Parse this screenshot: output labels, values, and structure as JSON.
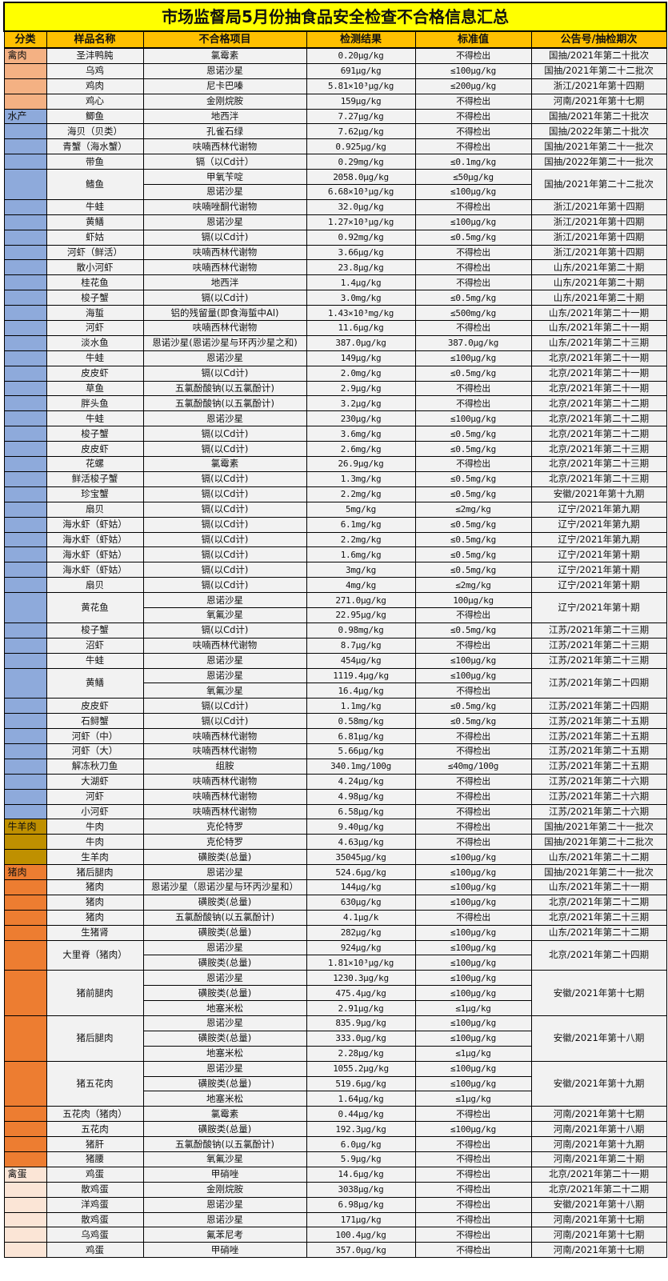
{
  "title": "市场监督局5月份抽食品安全检查不合格信息汇总",
  "headers": [
    "分类",
    "样品名称",
    "不合格项目",
    "检测结果",
    "标准值",
    "公告号/抽检期次"
  ],
  "colors": {
    "title_bg": "#ffff00",
    "header_bg": "#ffc000",
    "cell_bg": "#f2f2f2"
  },
  "categories": [
    {
      "label": "禽肉",
      "color": "#f4b183",
      "groups": [
        {
          "name": "圣沣鸭肫",
          "notice": "国抽/2021年第二十批次",
          "items": [
            [
              "氯霉素",
              "0.20μg/kg",
              "不得检出"
            ]
          ]
        },
        {
          "name": "乌鸡",
          "notice": "国抽/2021年第二十二批次",
          "items": [
            [
              "恩诺沙星",
              "691μg/kg",
              "≤100μg/kg"
            ]
          ]
        },
        {
          "name": "鸡肉",
          "notice": "浙江/2021年第十四期",
          "items": [
            [
              "尼卡巴嗪",
              "5.81×10³μg/kg",
              "≤200μg/kg"
            ]
          ]
        },
        {
          "name": "鸡心",
          "notice": "河南/2021年第十七期",
          "items": [
            [
              "金刚烷胺",
              "159μg/kg",
              "不得检出"
            ]
          ]
        }
      ]
    },
    {
      "label": "水产",
      "color": "#8eaadb",
      "groups": [
        {
          "name": "鲫鱼",
          "notice": "国抽/2021年第二十批次",
          "items": [
            [
              "地西泮",
              "7.27μg/kg",
              "不得检出"
            ]
          ]
        },
        {
          "name": "海贝（贝类）",
          "notice": "国抽/2022年第二十批次",
          "items": [
            [
              "孔雀石绿",
              "7.62μg/kg",
              "不得检出"
            ]
          ]
        },
        {
          "name": "青蟹（海水蟹）",
          "notice": "国抽/2021年第二十一批次",
          "items": [
            [
              "呋喃西林代谢物",
              "0.925μg/kg",
              "不得检出"
            ]
          ]
        },
        {
          "name": "带鱼",
          "notice": "国抽/2022年第二十一批次",
          "items": [
            [
              "镉（以Cd计）",
              "0.29mg/kg",
              "≤0.1mg/kg"
            ]
          ]
        },
        {
          "name": "鳍鱼",
          "notice": "国抽/2021年第二十二批次",
          "items": [
            [
              "甲氧苄啶",
              "2058.0μg/kg",
              "≤50μg/kg"
            ],
            [
              "恩诺沙星",
              "6.68×10³μg/kg",
              "≤100μg/kg"
            ]
          ]
        },
        {
          "name": "牛蛙",
          "notice": "浙江/2021年第十四期",
          "items": [
            [
              "呋喃唑酮代谢物",
              "32.0μg/kg",
              "不得检出"
            ]
          ]
        },
        {
          "name": "黄鳝",
          "notice": "浙江/2021年第十四期",
          "items": [
            [
              "恩诺沙星",
              "1.27×10³μg/kg",
              "≤100μg/kg"
            ]
          ]
        },
        {
          "name": "虾姑",
          "notice": "浙江/2021年第十四期",
          "items": [
            [
              "镉(以Cd计)",
              "0.92mg/kg",
              "≤0.5mg/kg"
            ]
          ]
        },
        {
          "name": "河虾（鲜活）",
          "notice": "浙江/2021年第十四期",
          "items": [
            [
              "呋喃西林代谢物",
              "3.66μg/kg",
              "不得检出"
            ]
          ]
        },
        {
          "name": "散小河虾",
          "notice": "山东/2021年第二十期",
          "items": [
            [
              "呋喃西林代谢物",
              "23.8μg/kg",
              "不得检出"
            ]
          ]
        },
        {
          "name": "桂花鱼",
          "notice": "山东/2021年第二十期",
          "items": [
            [
              "地西泮",
              "1.4μg/kg",
              "不得检出"
            ]
          ]
        },
        {
          "name": "梭子蟹",
          "notice": "山东/2021年第二十期",
          "items": [
            [
              "镉(以Cd计)",
              "3.0mg/kg",
              "≤0.5mg/kg"
            ]
          ]
        },
        {
          "name": "海蜇",
          "notice": "山东/2021年第二十一期",
          "items": [
            [
              "铝的残留量(即食海蜇中Al)",
              "1.43×10³mg/kg",
              "≤500mg/kg"
            ]
          ]
        },
        {
          "name": "河虾",
          "notice": "山东/2021年第二十一期",
          "items": [
            [
              "呋喃西林代谢物",
              "11.6μg/kg",
              "不得检出"
            ]
          ]
        },
        {
          "name": "淡水鱼",
          "notice": "山东/2021年第二十三期",
          "items": [
            [
              "恩诺沙星(恩诺沙星与环丙沙星之和)",
              "387.0μg/kg",
              "387.0μg/kg"
            ]
          ]
        },
        {
          "name": "牛蛙",
          "notice": "北京/2021年第二十一期",
          "items": [
            [
              "恩诺沙星",
              "149μg/kg",
              "≤100μg/kg"
            ]
          ]
        },
        {
          "name": "皮皮虾",
          "notice": "北京/2021年第二十一期",
          "items": [
            [
              "镉(以Cd计)",
              "2.0mg/kg",
              "≤0.5mg/kg"
            ]
          ]
        },
        {
          "name": "草鱼",
          "notice": "北京/2021年第二十一期",
          "items": [
            [
              "五氯酚酸钠(以五氯酚计)",
              "2.9μg/kg",
              "不得检出"
            ]
          ]
        },
        {
          "name": "胖头鱼",
          "notice": "北京/2021年第二十二期",
          "items": [
            [
              "五氯酚酸钠(以五氯酚计)",
              "3.2μg/kg",
              "不得检出"
            ]
          ]
        },
        {
          "name": "牛蛙",
          "notice": "北京/2021年第二十二期",
          "items": [
            [
              "恩诺沙星",
              "230μg/kg",
              "≤100μg/kg"
            ]
          ]
        },
        {
          "name": "梭子蟹",
          "notice": "北京/2021年第二十二期",
          "items": [
            [
              "镉(以Cd计)",
              "3.6mg/kg",
              "≤0.5mg/kg"
            ]
          ]
        },
        {
          "name": "皮皮虾",
          "notice": "北京/2021年第二十三期",
          "items": [
            [
              "镉(以Cd计)",
              "2.6mg/kg",
              "≤0.5mg/kg"
            ]
          ]
        },
        {
          "name": "花螺",
          "notice": "北京/2021年第二十三期",
          "items": [
            [
              "氯霉素",
              "26.9μg/kg",
              "不得检出"
            ]
          ]
        },
        {
          "name": "鲜活梭子蟹",
          "notice": "北京/2021年第二十三期",
          "items": [
            [
              "镉(以Cd计)",
              "1.3mg/kg",
              "≤0.5mg/kg"
            ]
          ]
        },
        {
          "name": "珍宝蟹",
          "notice": "安徽/2021年第十九期",
          "items": [
            [
              "镉(以Cd计)",
              "2.2mg/kg",
              "≤0.5mg/kg"
            ]
          ]
        },
        {
          "name": "扇贝",
          "notice": "辽宁/2021年第九期",
          "items": [
            [
              "镉(以Cd计)",
              "5mg/kg",
              "≤2mg/kg"
            ]
          ]
        },
        {
          "name": "海水虾（虾姑）",
          "notice": "辽宁/2021年第九期",
          "items": [
            [
              "镉(以Cd计)",
              "6.1mg/kg",
              "≤0.5mg/kg"
            ]
          ]
        },
        {
          "name": "海水虾（虾姑）",
          "notice": "辽宁/2021年第九期",
          "items": [
            [
              "镉(以Cd计)",
              "2.2mg/kg",
              "≤0.5mg/kg"
            ]
          ]
        },
        {
          "name": "海水虾（虾姑）",
          "notice": "辽宁/2021年第十期",
          "items": [
            [
              "镉(以Cd计)",
              "1.6mg/kg",
              "≤0.5mg/kg"
            ]
          ]
        },
        {
          "name": "海水虾（虾姑）",
          "notice": "辽宁/2021年第十期",
          "items": [
            [
              "镉(以Cd计)",
              "3mg/kg",
              "≤0.5mg/kg"
            ]
          ]
        },
        {
          "name": "扇贝",
          "notice": "辽宁/2021年第十期",
          "items": [
            [
              "镉(以Cd计)",
              "4mg/kg",
              "≤2mg/kg"
            ]
          ]
        },
        {
          "name": "黄花鱼",
          "notice": "辽宁/2021年第十期",
          "items": [
            [
              "恩诺沙星",
              "271.0μg/kg",
              "100μg/kg"
            ],
            [
              "氧氟沙星",
              "22.95μg/kg",
              "不得检出"
            ]
          ]
        },
        {
          "name": "梭子蟹",
          "notice": "江苏/2021年第二十三期",
          "items": [
            [
              "镉(以Cd计)",
              "0.98mg/kg",
              "≤0.5mg/kg"
            ]
          ]
        },
        {
          "name": "沼虾",
          "notice": "江苏/2021年第二十三期",
          "items": [
            [
              "呋喃西林代谢物",
              "8.7μg/kg",
              "不得检出"
            ]
          ]
        },
        {
          "name": "牛蛙",
          "notice": "江苏/2021年第二十三期",
          "items": [
            [
              "恩诺沙星",
              "454μg/kg",
              "≤100μg/kg"
            ]
          ]
        },
        {
          "name": "黄鳝",
          "notice": "江苏/2021年第二十四期",
          "items": [
            [
              "恩诺沙星",
              "1119.4μg/kg",
              "≤100μg/kg"
            ],
            [
              "氧氟沙星",
              "16.4μg/kg",
              "不得检出"
            ]
          ]
        },
        {
          "name": "皮皮虾",
          "notice": "江苏/2021年第二十四期",
          "items": [
            [
              "镉(以Cd计)",
              "1.1mg/kg",
              "≤0.5mg/kg"
            ]
          ]
        },
        {
          "name": "石鲟蟹",
          "notice": "江苏/2021年第二十五期",
          "items": [
            [
              "镉(以Cd计)",
              "0.58mg/kg",
              "≤0.5mg/kg"
            ]
          ]
        },
        {
          "name": "河虾（中）",
          "notice": "江苏/2021年第二十五期",
          "items": [
            [
              "呋喃西林代谢物",
              "6.81μg/kg",
              "不得检出"
            ]
          ]
        },
        {
          "name": "河虾（大）",
          "notice": "江苏/2021年第二十五期",
          "items": [
            [
              "呋喃西林代谢物",
              "5.66μg/kg",
              "不得检出"
            ]
          ]
        },
        {
          "name": "解冻秋刀鱼",
          "notice": "江苏/2021年第二十五期",
          "items": [
            [
              "组胺",
              "340.1mg/100g",
              "≤40mg/100g"
            ]
          ]
        },
        {
          "name": "大湖虾",
          "notice": "江苏/2021年第二十六期",
          "items": [
            [
              "呋喃西林代谢物",
              "4.24μg/kg",
              "不得检出"
            ]
          ]
        },
        {
          "name": "河虾",
          "notice": "江苏/2021年第二十六期",
          "items": [
            [
              "呋喃西林代谢物",
              "4.98μg/kg",
              "不得检出"
            ]
          ]
        },
        {
          "name": "小河虾",
          "notice": "江苏/2021年第二十六期",
          "items": [
            [
              "呋喃西林代谢物",
              "6.58μg/kg",
              "不得检出"
            ]
          ]
        }
      ]
    },
    {
      "label": "牛羊肉",
      "color": "#bf9000",
      "groups": [
        {
          "name": "牛肉",
          "notice": "国抽/2021年第二十一批次",
          "items": [
            [
              "克伦特罗",
              "9.40μg/kg",
              "不得检出"
            ]
          ]
        },
        {
          "name": "牛肉",
          "notice": "国抽/2021年第二十二批次",
          "items": [
            [
              "克伦特罗",
              "4.63μg/kg",
              "不得检出"
            ]
          ]
        },
        {
          "name": "生羊肉",
          "notice": "山东/2021年第二十二期",
          "items": [
            [
              "磺胺类(总量)",
              "35045μg/kg",
              "≤100μg/kg"
            ]
          ]
        }
      ]
    },
    {
      "label": "猪肉",
      "color": "#ed7d31",
      "groups": [
        {
          "name": "猪后腿肉",
          "notice": "国抽/2021年第二十一批次",
          "items": [
            [
              "恩诺沙星",
              "524.6μg/kg",
              "≤100μg/kg"
            ]
          ]
        },
        {
          "name": "猪肉",
          "notice": "山东/2021年第二十一期",
          "items": [
            [
              "恩诺沙星（恩诺沙星与环丙沙星和）",
              "144μg/kg",
              "≤100μg/kg"
            ]
          ]
        },
        {
          "name": "猪肉",
          "notice": "北京/2021年第二十二期",
          "items": [
            [
              "磺胺类(总量)",
              "630μg/kg",
              "≤100μg/kg"
            ]
          ]
        },
        {
          "name": "猪肉",
          "notice": "北京/2021年第二十三期",
          "items": [
            [
              "五氯酚酸钠(以五氯酚计)",
              "4.1μg/k",
              "不得检出"
            ]
          ]
        },
        {
          "name": "生猪肾",
          "notice": "山东/2021年第二十二期",
          "items": [
            [
              "磺胺类(总量)",
              "282μg/kg",
              "≤100μg/kg"
            ]
          ]
        },
        {
          "name": "大里脊（猪肉）",
          "notice": "北京/2021年第二十四期",
          "items": [
            [
              "恩诺沙星",
              "924μg/kg",
              "≤100μg/kg"
            ],
            [
              "磺胺类(总量)",
              "1.81×10³μg/kg",
              "≤100μg/kg"
            ]
          ]
        },
        {
          "name": "猪前腿肉",
          "notice": "安徽/2021年第十七期",
          "items": [
            [
              "恩诺沙星",
              "1230.3μg/kg",
              "≤100μg/kg"
            ],
            [
              "磺胺类(总量)",
              "475.4μg/kg",
              "≤100μg/kg"
            ],
            [
              "地塞米松",
              "2.91μg/kg",
              "≤1μg/kg"
            ]
          ]
        },
        {
          "name": "猪后腿肉",
          "notice": "安徽/2021年第十八期",
          "items": [
            [
              "恩诺沙星",
              "835.9μg/kg",
              "≤100μg/kg"
            ],
            [
              "磺胺类(总量)",
              "333.0μg/kg",
              "≤100μg/kg"
            ],
            [
              "地塞米松",
              "2.28μg/kg",
              "≤1μg/kg"
            ]
          ]
        },
        {
          "name": "猪五花肉",
          "notice": "安徽/2021年第十九期",
          "items": [
            [
              "恩诺沙星",
              "1055.2μg/kg",
              "≤100μg/kg"
            ],
            [
              "磺胺类(总量)",
              "519.6μg/kg",
              "≤100μg/kg"
            ],
            [
              "地塞米松",
              "1.64μg/kg",
              "≤1μg/kg"
            ]
          ]
        },
        {
          "name": "五花肉（猪肉）",
          "notice": "河南/2021年第十七期",
          "items": [
            [
              "氯霉素",
              "0.44μg/kg",
              "不得检出"
            ]
          ]
        },
        {
          "name": "五花肉",
          "notice": "河南/2021年第十八期",
          "items": [
            [
              "磺胺类(总量)",
              "192.3μg/kg",
              "≤100μg/kg"
            ]
          ]
        },
        {
          "name": "猪肝",
          "notice": "河南/2021年第十九期",
          "items": [
            [
              "五氯酚酸钠(以五氯酚计)",
              "6.0μg/kg",
              "不得检出"
            ]
          ]
        },
        {
          "name": "猪腰",
          "notice": "河南/2021年第二十期",
          "items": [
            [
              "氧氟沙星",
              "5.9μg/kg",
              "不得检出"
            ]
          ]
        }
      ]
    },
    {
      "label": "禽蛋",
      "color": "#fbe5d6",
      "groups": [
        {
          "name": "鸡蛋",
          "notice": "北京/2021年第二十一期",
          "items": [
            [
              "甲硝唑",
              "14.6μg/kg",
              "不得检出"
            ]
          ]
        },
        {
          "name": "散鸡蛋",
          "notice": "北京/2021年第二十二期",
          "items": [
            [
              "金刚烷胺",
              "3038μg/kg",
              "不得检出"
            ]
          ]
        },
        {
          "name": "洋鸡蛋",
          "notice": "安徽/2021年第十八期",
          "items": [
            [
              "恩诺沙星",
              "6.98μg/kg",
              "不得检出"
            ]
          ]
        },
        {
          "name": "散鸡蛋",
          "notice": "河南/2021年第十七期",
          "items": [
            [
              "恩诺沙星",
              "171μg/kg",
              "不得检出"
            ]
          ]
        },
        {
          "name": "乌鸡蛋",
          "notice": "河南/2021年第十七期",
          "items": [
            [
              "氟苯尼考",
              "100.4μg/kg",
              "不得检出"
            ]
          ]
        },
        {
          "name": "鸡蛋",
          "notice": "河南/2021年第十七期",
          "items": [
            [
              "甲硝唑",
              "357.0μg/kg",
              "不得检出"
            ]
          ]
        }
      ]
    }
  ]
}
